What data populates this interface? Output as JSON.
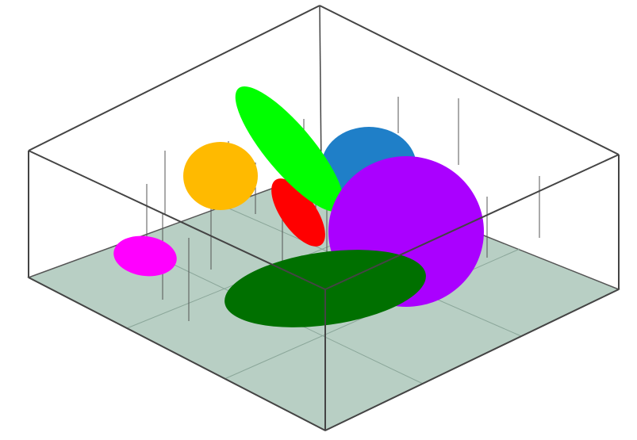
{
  "chart_data": {
    "type": "scatter",
    "subtype": "3d-ellipsoid-clusters",
    "title": "",
    "xlabel": "",
    "ylabel": "",
    "zlabel": "",
    "grid": true,
    "floor_color": "#b8cfc4",
    "axis_ticks": {
      "z": [
        "",
        "",
        ""
      ],
      "x": [
        "",
        "",
        ""
      ],
      "y": [
        "",
        "",
        ""
      ]
    },
    "series": [
      {
        "color": "#ff00ff"
      },
      {
        "color": "#ffba00"
      },
      {
        "color": "#ff0000"
      },
      {
        "color": "#1f7fc8"
      },
      {
        "color": "#00ff00"
      },
      {
        "color": "#aa00ff"
      },
      {
        "color": "#007000"
      }
    ],
    "stem_labels": [
      "",
      "",
      "",
      "",
      "",
      "",
      "",
      "",
      "",
      "",
      "",
      "",
      "",
      "",
      "",
      "",
      ""
    ]
  }
}
